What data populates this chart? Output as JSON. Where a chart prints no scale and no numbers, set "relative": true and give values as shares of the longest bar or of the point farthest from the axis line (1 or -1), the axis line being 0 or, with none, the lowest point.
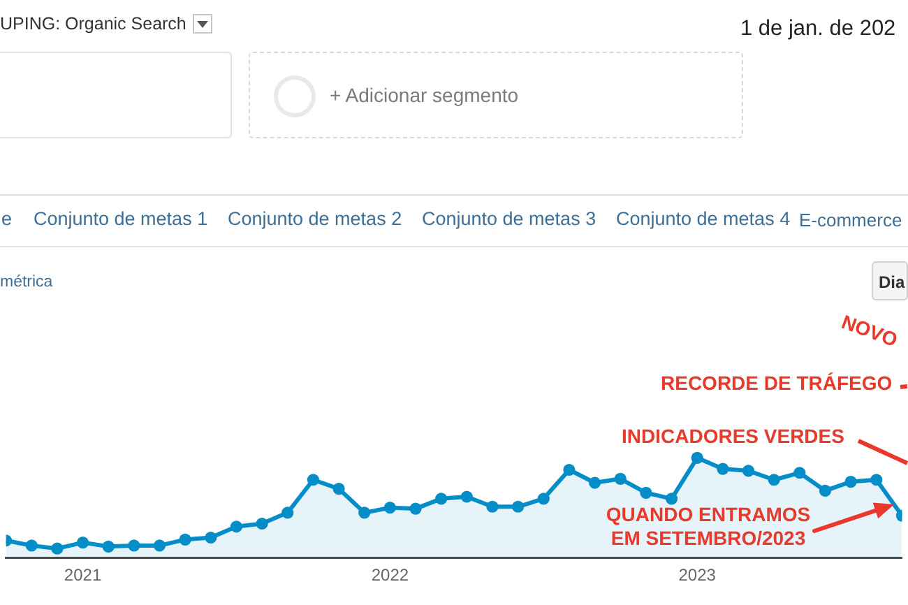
{
  "chart_data": [
    {
      "type": "other",
      "annotations": [
        "UPING: Organic Search",
        "1 de jan. de 202",
        "+ Adicionar segmento",
        "e",
        "Conjunto de metas 1",
        "Conjunto de metas 2",
        "Conjunto de metas 3",
        "Conjunto de metas 4",
        "E-commerce",
        "métrica",
        "Dia"
      ]
    },
    {
      "type": "area",
      "relative": true,
      "color": "#058dc7",
      "marker": "circle",
      "x": [
        "2020-10",
        "2020-11",
        "2020-12",
        "2021-01",
        "2021-02",
        "2021-03",
        "2021-04",
        "2021-05",
        "2021-06",
        "2021-07",
        "2021-08",
        "2021-09",
        "2021-10",
        "2021-11",
        "2021-12",
        "2022-01",
        "2022-02",
        "2022-03",
        "2022-04",
        "2022-05",
        "2022-06",
        "2022-07",
        "2022-08",
        "2022-09",
        "2022-10",
        "2022-11",
        "2022-12",
        "2023-01",
        "2023-02",
        "2023-03",
        "2023-04",
        "2023-05",
        "2023-06",
        "2023-07",
        "2023-08",
        "2023-09"
      ],
      "values": [
        0.17,
        0.12,
        0.09,
        0.15,
        0.11,
        0.12,
        0.12,
        0.18,
        0.2,
        0.31,
        0.34,
        0.45,
        0.78,
        0.69,
        0.45,
        0.5,
        0.49,
        0.59,
        0.61,
        0.51,
        0.51,
        0.59,
        0.88,
        0.75,
        0.79,
        0.65,
        0.59,
        1,
        0.89,
        0.87,
        0.78,
        0.85,
        0.67,
        0.76,
        0.78,
        0.42
      ],
      "xlim": [
        "2020-10",
        "2023-09"
      ],
      "xticks": [
        "2021",
        "2022",
        "2023"
      ],
      "annotations": [
        "NOVO",
        "RECORDE DE TRÁFEGO",
        "INDICADORES VERDES",
        "QUANDO ENTRAMOS EM SETEMBRO/2023"
      ]
    }
  ]
}
